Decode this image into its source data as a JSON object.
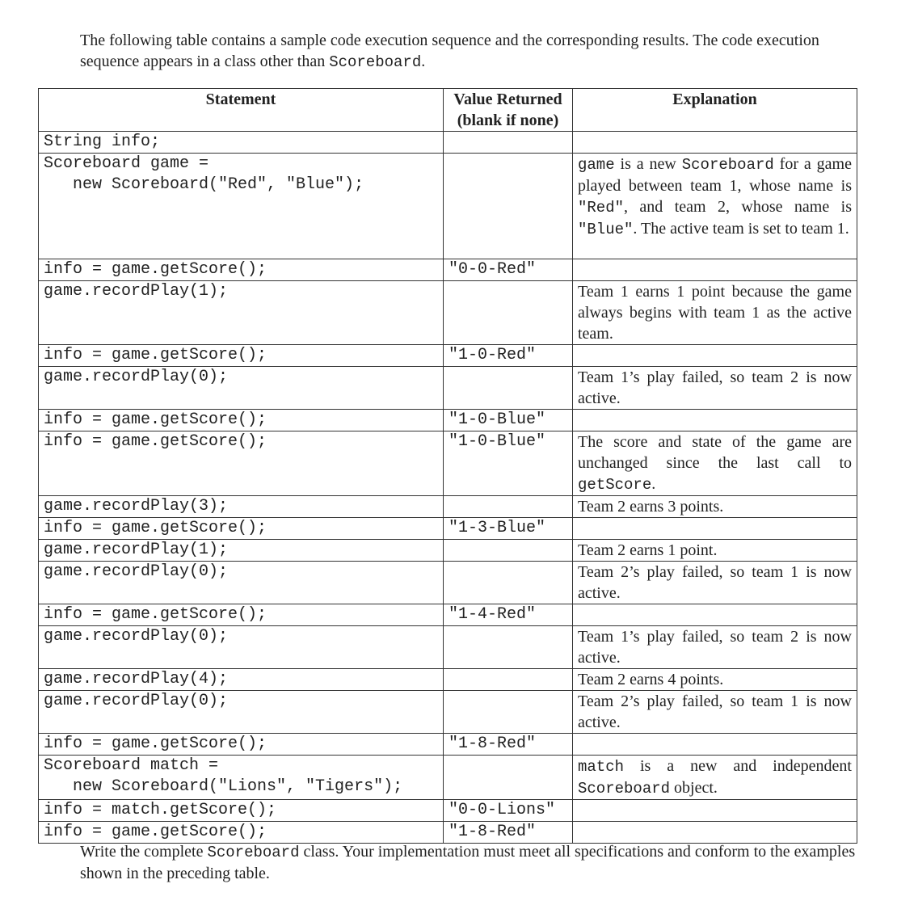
{
  "intro": [
    {
      "t": "The following table contains a sample code execution sequence and the corresponding results. The code execution sequence appears in a class other than ",
      "code": false
    },
    {
      "t": "Scoreboard",
      "code": true
    },
    {
      "t": ".",
      "code": false
    }
  ],
  "table": {
    "headers": [
      "Statement",
      "Value Returned\n(blank if none)",
      "Explanation"
    ],
    "rows": [
      {
        "stmt": [
          "String info;"
        ],
        "val": "",
        "exp": []
      },
      {
        "stmt": [
          "Scoreboard game =",
          "   new Scoreboard(\"Red\", \"Blue\");"
        ],
        "val": "",
        "exp": [
          {
            "t": "game",
            "code": true
          },
          {
            "t": " is a new ",
            "code": false
          },
          {
            "t": "Scoreboard",
            "code": true
          },
          {
            "t": " for a game played between team 1, whose name is ",
            "code": false
          },
          {
            "t": "\"Red\"",
            "code": true
          },
          {
            "t": ", and team 2, whose name is ",
            "code": false
          },
          {
            "t": "\"Blue\"",
            "code": true
          },
          {
            "t": ". The active team is set to team 1.",
            "code": false
          }
        ]
      },
      {
        "stmt": [
          "info = game.getScore();"
        ],
        "val": "\"0-0-Red\"",
        "exp": []
      },
      {
        "stmt": [
          "game.recordPlay(1);"
        ],
        "val": "",
        "exp": [
          {
            "t": "Team 1 earns 1 point because the game always begins with team 1 as the active team.",
            "code": false
          }
        ]
      },
      {
        "stmt": [
          "info = game.getScore();"
        ],
        "val": "\"1-0-Red\"",
        "exp": []
      },
      {
        "stmt": [
          "game.recordPlay(0);"
        ],
        "val": "",
        "exp": [
          {
            "t": "Team 1’s play failed, so team 2 is now active.",
            "code": false
          }
        ]
      },
      {
        "stmt": [
          "info = game.getScore();"
        ],
        "val": "\"1-0-Blue\"",
        "exp": []
      },
      {
        "stmt": [
          "info = game.getScore();"
        ],
        "val": "\"1-0-Blue\"",
        "exp": [
          {
            "t": "The score and state of the game are unchanged since the last call to ",
            "code": false
          },
          {
            "t": "getScore",
            "code": true
          },
          {
            "t": ".",
            "code": false
          }
        ]
      },
      {
        "stmt": [
          "game.recordPlay(3);"
        ],
        "val": "",
        "exp": [
          {
            "t": "Team 2 earns 3 points.",
            "code": false
          }
        ]
      },
      {
        "stmt": [
          "info = game.getScore();"
        ],
        "val": "\"1-3-Blue\"",
        "exp": []
      },
      {
        "stmt": [
          "game.recordPlay(1);"
        ],
        "val": "",
        "exp": [
          {
            "t": "Team 2 earns 1 point.",
            "code": false
          }
        ]
      },
      {
        "stmt": [
          "game.recordPlay(0);"
        ],
        "val": "",
        "exp": [
          {
            "t": "Team 2’s play failed, so team 1 is now active.",
            "code": false
          }
        ]
      },
      {
        "stmt": [
          "info = game.getScore();"
        ],
        "val": "\"1-4-Red\"",
        "exp": []
      },
      {
        "stmt": [
          "game.recordPlay(0);"
        ],
        "val": "",
        "exp": [
          {
            "t": "Team 1’s play failed, so team 2 is now active.",
            "code": false
          }
        ]
      },
      {
        "stmt": [
          "game.recordPlay(4);"
        ],
        "val": "",
        "exp": [
          {
            "t": "Team 2 earns 4 points.",
            "code": false
          }
        ]
      },
      {
        "stmt": [
          "game.recordPlay(0);"
        ],
        "val": "",
        "exp": [
          {
            "t": "Team 2’s play failed, so team 1 is now active.",
            "code": false
          }
        ]
      },
      {
        "stmt": [
          "info = game.getScore();"
        ],
        "val": "\"1-8-Red\"",
        "exp": []
      },
      {
        "stmt": [
          "Scoreboard match =",
          "   new Scoreboard(\"Lions\", \"Tigers\");"
        ],
        "val": "",
        "exp": [
          {
            "t": "match",
            "code": true
          },
          {
            "t": " is a new and independent ",
            "code": false
          },
          {
            "t": "Scoreboard",
            "code": true
          },
          {
            "t": "  object.",
            "code": false
          }
        ]
      },
      {
        "stmt": [
          "info = match.getScore();"
        ],
        "val": "\"0-0-Lions\"",
        "exp": []
      },
      {
        "stmt": [
          "info = game.getScore();"
        ],
        "val": "\"1-8-Red\"",
        "exp": []
      }
    ]
  },
  "outro": [
    {
      "t": "Write the complete ",
      "code": false
    },
    {
      "t": "Scoreboard",
      "code": true
    },
    {
      "t": " class. Your implementation must meet all specifications and conform to the examples shown in the preceding table.",
      "code": false
    }
  ]
}
